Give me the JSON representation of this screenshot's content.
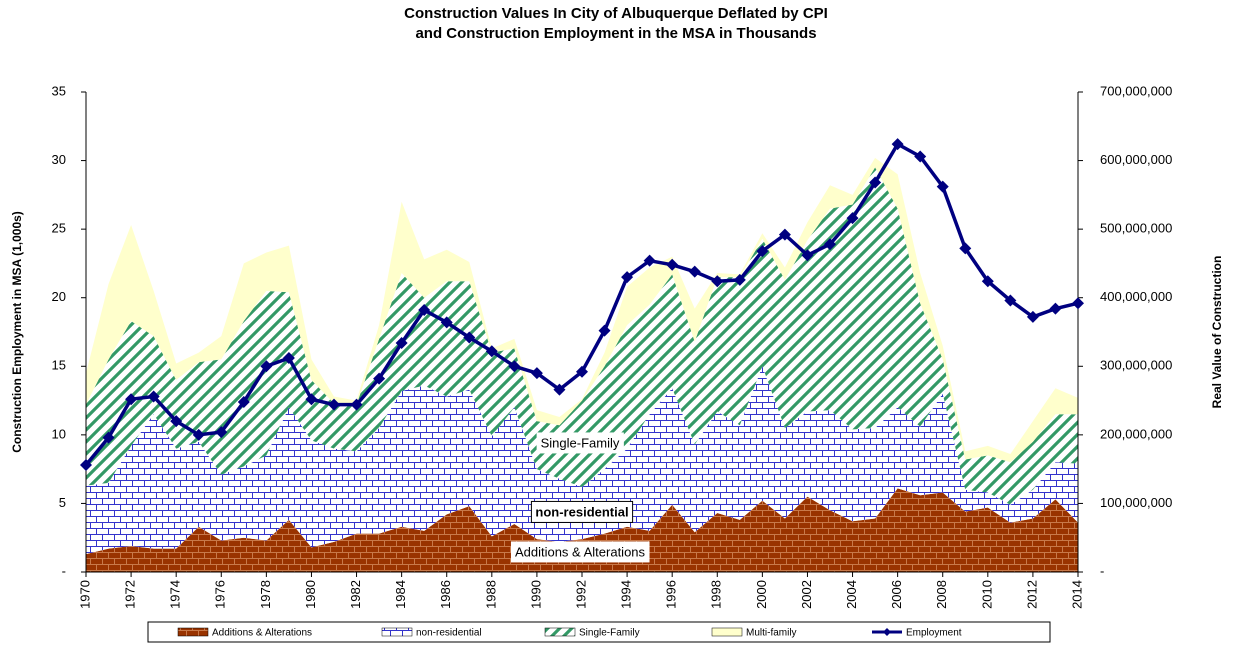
{
  "chart_data": {
    "type": "stacked-area-line",
    "title": "Construction Values In City of Albuquerque Deflated by CPI",
    "subtitle": "and Construction Employment in the MSA in Thousands",
    "y_label": "Construction Employment in MSA (1,000s)",
    "y2_label": "Real Value of Construction",
    "x": [
      1970,
      1971,
      1972,
      1973,
      1974,
      1975,
      1976,
      1977,
      1978,
      1979,
      1980,
      1981,
      1982,
      1983,
      1984,
      1985,
      1986,
      1987,
      1988,
      1989,
      1990,
      1991,
      1992,
      1993,
      1994,
      1995,
      1996,
      1997,
      1998,
      1999,
      2000,
      2001,
      2002,
      2003,
      2004,
      2005,
      2006,
      2007,
      2008,
      2009,
      2010,
      2011,
      2012,
      2013,
      2014
    ],
    "xlim": [
      1970,
      2014
    ],
    "xticks": [
      1970,
      1972,
      1974,
      1976,
      1978,
      1980,
      1982,
      1984,
      1986,
      1988,
      1990,
      1992,
      1994,
      1996,
      1998,
      2000,
      2002,
      2004,
      2006,
      2008,
      2010,
      2012,
      2014
    ],
    "ylim": [
      0,
      35
    ],
    "yticks": [
      {
        "value": 0,
        "label": "-"
      },
      5,
      10,
      15,
      20,
      25,
      30,
      35
    ],
    "y2lim": [
      0,
      700000000
    ],
    "y2ticks": [
      {
        "value": 0,
        "label": "-"
      },
      {
        "value": 100000000,
        "label": "100,000,000"
      },
      {
        "value": 200000000,
        "label": "200,000,000"
      },
      {
        "value": 300000000,
        "label": "300,000,000"
      },
      {
        "value": 400000000,
        "label": "400,000,000"
      },
      {
        "value": 500000000,
        "label": "500,000,000"
      },
      {
        "value": 600000000,
        "label": "600,000,000"
      },
      {
        "value": 700000000,
        "label": "700,000,000"
      }
    ],
    "series": [
      {
        "name": "Additions & Alterations",
        "color": "#993300",
        "pattern": "dotted-bricks",
        "axis": "y2",
        "stacked": true,
        "values": [
          26000000,
          34000000,
          38000000,
          34000000,
          34000000,
          66000000,
          46000000,
          50000000,
          46000000,
          76000000,
          36000000,
          44000000,
          56000000,
          56000000,
          66000000,
          60000000,
          84000000,
          96000000,
          52000000,
          70000000,
          48000000,
          44000000,
          48000000,
          56000000,
          66000000,
          60000000,
          98000000,
          58000000,
          86000000,
          76000000,
          104000000,
          78000000,
          110000000,
          90000000,
          74000000,
          78000000,
          122000000,
          112000000,
          116000000,
          88000000,
          94000000,
          72000000,
          78000000,
          106000000,
          72000000
        ]
      },
      {
        "name": "non-residential",
        "color": "#3333cc",
        "pattern": "bricks",
        "axis": "y2",
        "stacked": true,
        "values": [
          100000000,
          96000000,
          146000000,
          196000000,
          146000000,
          124000000,
          96000000,
          104000000,
          124000000,
          164000000,
          156000000,
          136000000,
          120000000,
          154000000,
          198000000,
          212000000,
          172000000,
          170000000,
          146000000,
          170000000,
          102000000,
          92000000,
          76000000,
          94000000,
          114000000,
          170000000,
          170000000,
          128000000,
          148000000,
          138000000,
          196000000,
          132000000,
          124000000,
          146000000,
          134000000,
          132000000,
          118000000,
          100000000,
          144000000,
          32000000,
          22000000,
          26000000,
          42000000,
          54000000,
          86000000
        ]
      },
      {
        "name": "Single-Family",
        "color": "#339966",
        "pattern": "stripes",
        "axis": "y2",
        "stacked": true,
        "values": [
          118000000,
          180000000,
          182000000,
          114000000,
          100000000,
          116000000,
          168000000,
          212000000,
          240000000,
          168000000,
          88000000,
          66000000,
          68000000,
          130000000,
          172000000,
          128000000,
          168000000,
          158000000,
          122000000,
          86000000,
          70000000,
          78000000,
          126000000,
          150000000,
          180000000,
          160000000,
          166000000,
          150000000,
          196000000,
          216000000,
          186000000,
          216000000,
          250000000,
          294000000,
          328000000,
          380000000,
          290000000,
          180000000,
          50000000,
          44000000,
          54000000,
          62000000,
          70000000,
          70000000,
          72000000
        ]
      },
      {
        "name": "Multi-family",
        "color": "#ffffcc",
        "pattern": "solid",
        "axis": "y2",
        "stacked": true,
        "values": [
          46000000,
          110000000,
          140000000,
          66000000,
          24000000,
          14000000,
          34000000,
          84000000,
          56000000,
          68000000,
          30000000,
          10000000,
          6000000,
          20000000,
          104000000,
          56000000,
          46000000,
          28000000,
          6000000,
          14000000,
          16000000,
          12000000,
          2000000,
          20000000,
          56000000,
          54000000,
          26000000,
          48000000,
          6000000,
          4000000,
          8000000,
          18000000,
          26000000,
          34000000,
          14000000,
          14000000,
          50000000,
          44000000,
          20000000,
          12000000,
          14000000,
          12000000,
          30000000,
          38000000,
          24000000
        ]
      },
      {
        "name": "Employment",
        "color": "#000080",
        "pattern": "line",
        "axis": "y",
        "values": [
          7.8,
          9.8,
          12.6,
          12.8,
          11.0,
          10.0,
          10.2,
          12.4,
          15.0,
          15.6,
          12.6,
          12.2,
          12.2,
          14.1,
          16.7,
          19.1,
          18.2,
          17.1,
          16.1,
          15.0,
          14.5,
          13.3,
          14.6,
          17.6,
          21.5,
          22.7,
          22.4,
          21.9,
          21.2,
          21.3,
          23.4,
          24.6,
          23.1,
          23.9,
          25.8,
          28.4,
          31.2,
          30.3,
          28.1,
          23.6,
          21.2,
          19.8,
          18.6,
          19.2,
          19.6
        ]
      }
    ],
    "annotations": [
      "Single-Family",
      "non-residential",
      "Additions & Alterations"
    ],
    "legend": "bottom"
  }
}
